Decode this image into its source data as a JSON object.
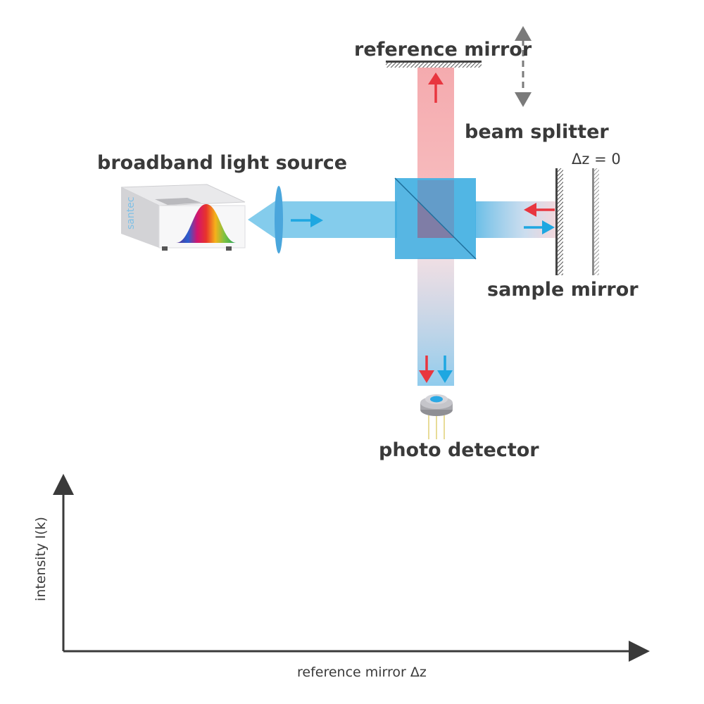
{
  "labels": {
    "reference_mirror": "reference mirror",
    "beam_splitter": "beam splitter",
    "delta_z": "Δz = 0",
    "broadband_source": "broadband light source",
    "sample_mirror": "sample mirror",
    "photo_detector": "photo detector"
  },
  "device_logo": "santec",
  "axes": {
    "ylabel": "intensity I(k)",
    "xlabel": "reference mirror Δz"
  },
  "colors": {
    "blue_beam": "#5bbbe6",
    "red_beam": "#f4a3a6",
    "blue_arrow": "#1ea7e1",
    "red_arrow": "#e8363f",
    "splitter": "#3aa9de",
    "text": "#3a3a3a"
  }
}
